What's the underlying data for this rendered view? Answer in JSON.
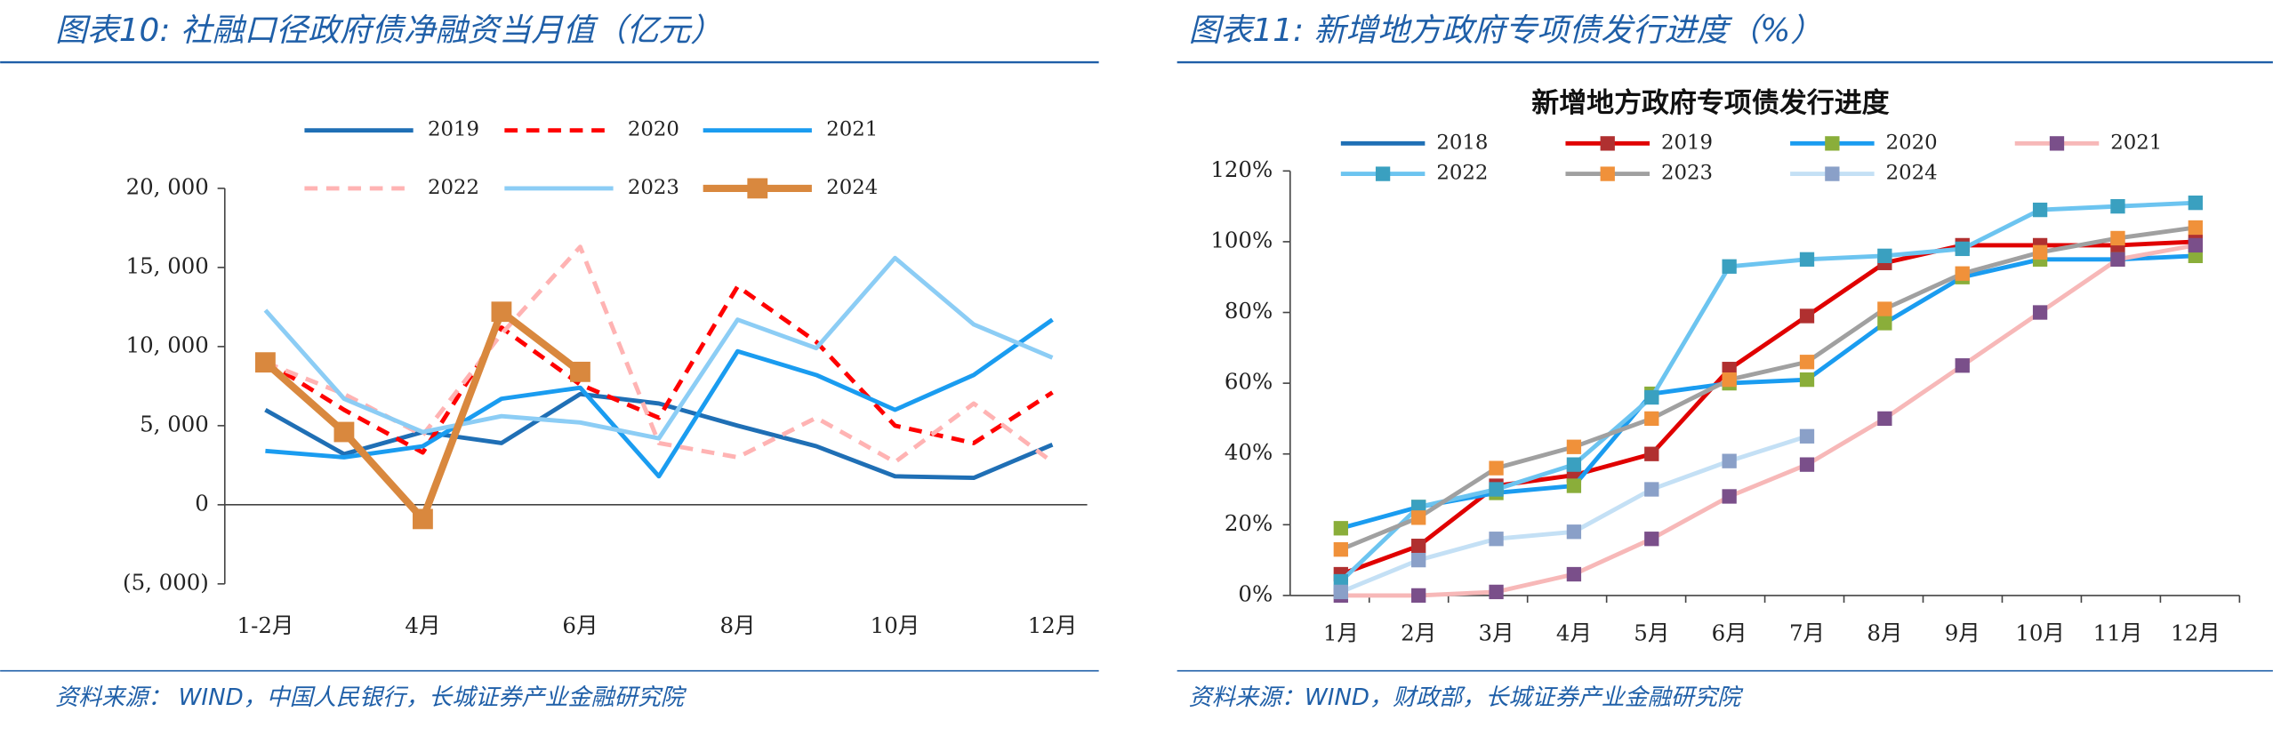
{
  "chart_data": [
    {
      "type": "line",
      "caption": "图表10: 社融口径政府债净融资当月值（亿元）",
      "source": "资料来源： WIND，中国人民银行，长城证券产业金融研究院",
      "categories": [
        "1-2月",
        null,
        "4月",
        null,
        "6月",
        null,
        "8月",
        null,
        "10月",
        null,
        "12月"
      ],
      "ylim": [
        -5000,
        20000
      ],
      "yticks": [
        {
          "value": -5000,
          "label": "(5, 000)"
        },
        0,
        {
          "value": 5000,
          "label": "5, 000"
        },
        {
          "value": 10000,
          "label": "10, 000"
        },
        {
          "value": 15000,
          "label": "15, 000"
        },
        {
          "value": 20000,
          "label": "20, 000"
        }
      ],
      "grid": false,
      "series": [
        {
          "name": "2019",
          "color": "#1f6fb5",
          "values": [
            6000,
            3200,
            4600,
            3900,
            7000,
            6400,
            5000,
            3700,
            1800,
            1700,
            3800
          ]
        },
        {
          "name": "2020",
          "color": "#ff0000",
          "dash": true,
          "values": [
            9100,
            6000,
            3300,
            11200,
            7600,
            5500,
            13800,
            10300,
            5000,
            3900,
            7100
          ]
        },
        {
          "name": "2021",
          "color": "#1a9cf0",
          "values": [
            3400,
            3000,
            3700,
            6700,
            7400,
            1800,
            9700,
            8200,
            6000,
            8200,
            11700
          ]
        },
        {
          "name": "2022",
          "color": "#ffb3b3",
          "dash": true,
          "values": [
            9000,
            7000,
            4400,
            10800,
            16300,
            3900,
            3000,
            5500,
            2700,
            6400,
            2700
          ]
        },
        {
          "name": "2023",
          "color": "#8ccdf5",
          "values": [
            12300,
            6700,
            4600,
            5600,
            5200,
            4200,
            11700,
            9900,
            15600,
            11400,
            9300
          ]
        },
        {
          "name": "2024",
          "color": "#d9883e",
          "marker": "square",
          "marker_color": "#d9883e",
          "width": 5,
          "values": [
            9000,
            4600,
            -900,
            12200,
            8400,
            null,
            null,
            null,
            null,
            null,
            null
          ]
        }
      ]
    },
    {
      "type": "line",
      "caption": "图表11: 新增地方政府专项债发行进度（%）",
      "title": "新增地方政府专项债发行进度",
      "source": "资料来源：WIND，财政部，长城证券产业金融研究院",
      "categories": [
        "1月",
        "2月",
        "3月",
        "4月",
        "5月",
        "6月",
        "7月",
        "8月",
        "9月",
        "10月",
        "11月",
        "12月"
      ],
      "ylim": [
        0,
        120
      ],
      "yticks": [
        {
          "value": 0,
          "label": "0%"
        },
        {
          "value": 20,
          "label": "20%"
        },
        {
          "value": 40,
          "label": "40%"
        },
        {
          "value": 60,
          "label": "60%"
        },
        {
          "value": 80,
          "label": "80%"
        },
        {
          "value": 100,
          "label": "100%"
        },
        {
          "value": 120,
          "label": "120%"
        }
      ],
      "grid": false,
      "series": [
        {
          "name": "2018",
          "color": "#1f6fb5",
          "values": [
            null,
            null,
            null,
            null,
            null,
            null,
            null,
            null,
            null,
            null,
            null,
            null
          ]
        },
        {
          "name": "2019",
          "color": "#e00000",
          "marker": "square",
          "marker_color": "#b03030",
          "values": [
            6,
            14,
            31,
            34,
            40,
            64,
            79,
            94,
            99,
            99,
            99,
            100
          ]
        },
        {
          "name": "2020",
          "color": "#1a9cf0",
          "marker": "square",
          "marker_color": "#8aae3a",
          "values": [
            19,
            25,
            29,
            31,
            57,
            60,
            61,
            77,
            90,
            95,
            95,
            96
          ]
        },
        {
          "name": "2021",
          "color": "#f7b8b8",
          "marker": "square",
          "marker_color": "#7a4f8a",
          "values": [
            0,
            0,
            1,
            6,
            16,
            28,
            37,
            50,
            65,
            80,
            95,
            99
          ]
        },
        {
          "name": "2022",
          "color": "#6cc4f0",
          "marker": "square",
          "marker_color": "#3aa0c0",
          "values": [
            4,
            25,
            30,
            37,
            56,
            93,
            95,
            96,
            98,
            109,
            110,
            111
          ]
        },
        {
          "name": "2023",
          "color": "#a0a0a0",
          "marker": "square",
          "marker_color": "#f0913a",
          "values": [
            13,
            22,
            36,
            42,
            50,
            61,
            66,
            81,
            91,
            97,
            101,
            104
          ]
        },
        {
          "name": "2024",
          "color": "#c4e0f5",
          "marker": "square",
          "marker_color": "#8aa0c8",
          "values": [
            1,
            10,
            16,
            18,
            30,
            38,
            45,
            null,
            null,
            null,
            null,
            null
          ]
        }
      ]
    }
  ]
}
